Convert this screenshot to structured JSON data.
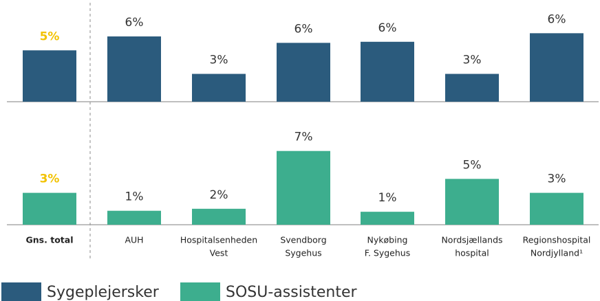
{
  "chart_data": {
    "type": "bar",
    "categories": [
      [
        "Gns. total"
      ],
      [
        "AUH"
      ],
      [
        "Hospitalsenheden",
        "Vest"
      ],
      [
        "Svendborg",
        "Sygehus"
      ],
      [
        "Nykøbing",
        "F. Sygehus"
      ],
      [
        "Nordsjællands",
        "hospital"
      ],
      [
        "Regionshospital",
        "Nordjylland¹"
      ]
    ],
    "highlight_label_color": "#f2c200",
    "series": [
      {
        "name": "Sygeplejersker",
        "color": "#2b5b7d",
        "ylim": [
          0,
          7
        ],
        "values": [
          4.8,
          6.1,
          2.6,
          5.5,
          5.6,
          2.6,
          6.4
        ],
        "value_labels": [
          "5%",
          "6%",
          "3%",
          "6%",
          "6%",
          "3%",
          "6%"
        ]
      },
      {
        "name": "SOSU-assistenter",
        "color": "#3dae8e",
        "ylim": [
          0,
          8
        ],
        "values": [
          3.2,
          1.4,
          1.6,
          7.4,
          1.3,
          4.6,
          3.2
        ],
        "value_labels": [
          "3%",
          "1%",
          "2%",
          "7%",
          "1%",
          "5%",
          "3%"
        ]
      }
    ]
  }
}
